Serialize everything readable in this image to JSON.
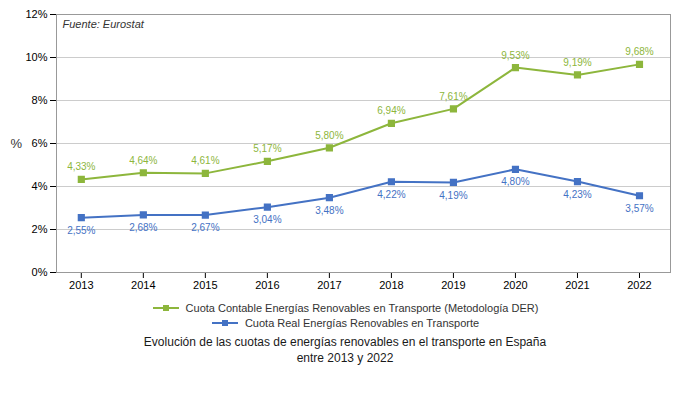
{
  "chart_data": {
    "type": "line",
    "title": "Evolución de las cuotas de energías renovables en el transporte en España\nentre 2013 y 2022",
    "ylabel": "%",
    "annotations": [
      "Fuente: Eurostat"
    ],
    "x": [
      2013,
      2014,
      2015,
      2016,
      2017,
      2018,
      2019,
      2020,
      2021,
      2022
    ],
    "xlim": [
      2012.6,
      2022.5
    ],
    "xticks": [
      2013,
      2014,
      2015,
      2016,
      2017,
      2018,
      2019,
      2020,
      2021,
      2022
    ],
    "ylim": [
      0,
      12
    ],
    "yticks": [
      {
        "value": 0,
        "label": "0%"
      },
      {
        "value": 2,
        "label": "2%"
      },
      {
        "value": 4,
        "label": "4%"
      },
      {
        "value": 6,
        "label": "6%"
      },
      {
        "value": 8,
        "label": "8%"
      },
      {
        "value": 10,
        "label": "10%"
      },
      {
        "value": 12,
        "label": "12%"
      }
    ],
    "grid": "y",
    "legend": "bottom",
    "data_labels": true,
    "series": [
      {
        "name": "Cuota Contable Energías Renovables en Transporte (Metodología DER)",
        "color": "#8db63c",
        "marker": "square",
        "line_style": "solid",
        "values": [
          4.33,
          4.64,
          4.61,
          5.17,
          5.8,
          6.94,
          7.61,
          9.53,
          9.19,
          9.68
        ],
        "value_labels": [
          "4,33%",
          "4,64%",
          "4,61%",
          "5,17%",
          "5,80%",
          "6,94%",
          "7,61%",
          "9,53%",
          "9,19%",
          "9,68%"
        ]
      },
      {
        "name": "Cuota Real Energías Renovables en Transporte",
        "color": "#4472c4",
        "marker": "square",
        "line_style": "solid",
        "values": [
          2.55,
          2.68,
          2.67,
          3.04,
          3.48,
          4.22,
          4.19,
          4.8,
          4.23,
          3.57
        ],
        "value_labels": [
          "2,55%",
          "2,68%",
          "2,67%",
          "3,04%",
          "3,48%",
          "4,22%",
          "4,19%",
          "4,80%",
          "4,23%",
          "3,57%"
        ]
      }
    ]
  }
}
